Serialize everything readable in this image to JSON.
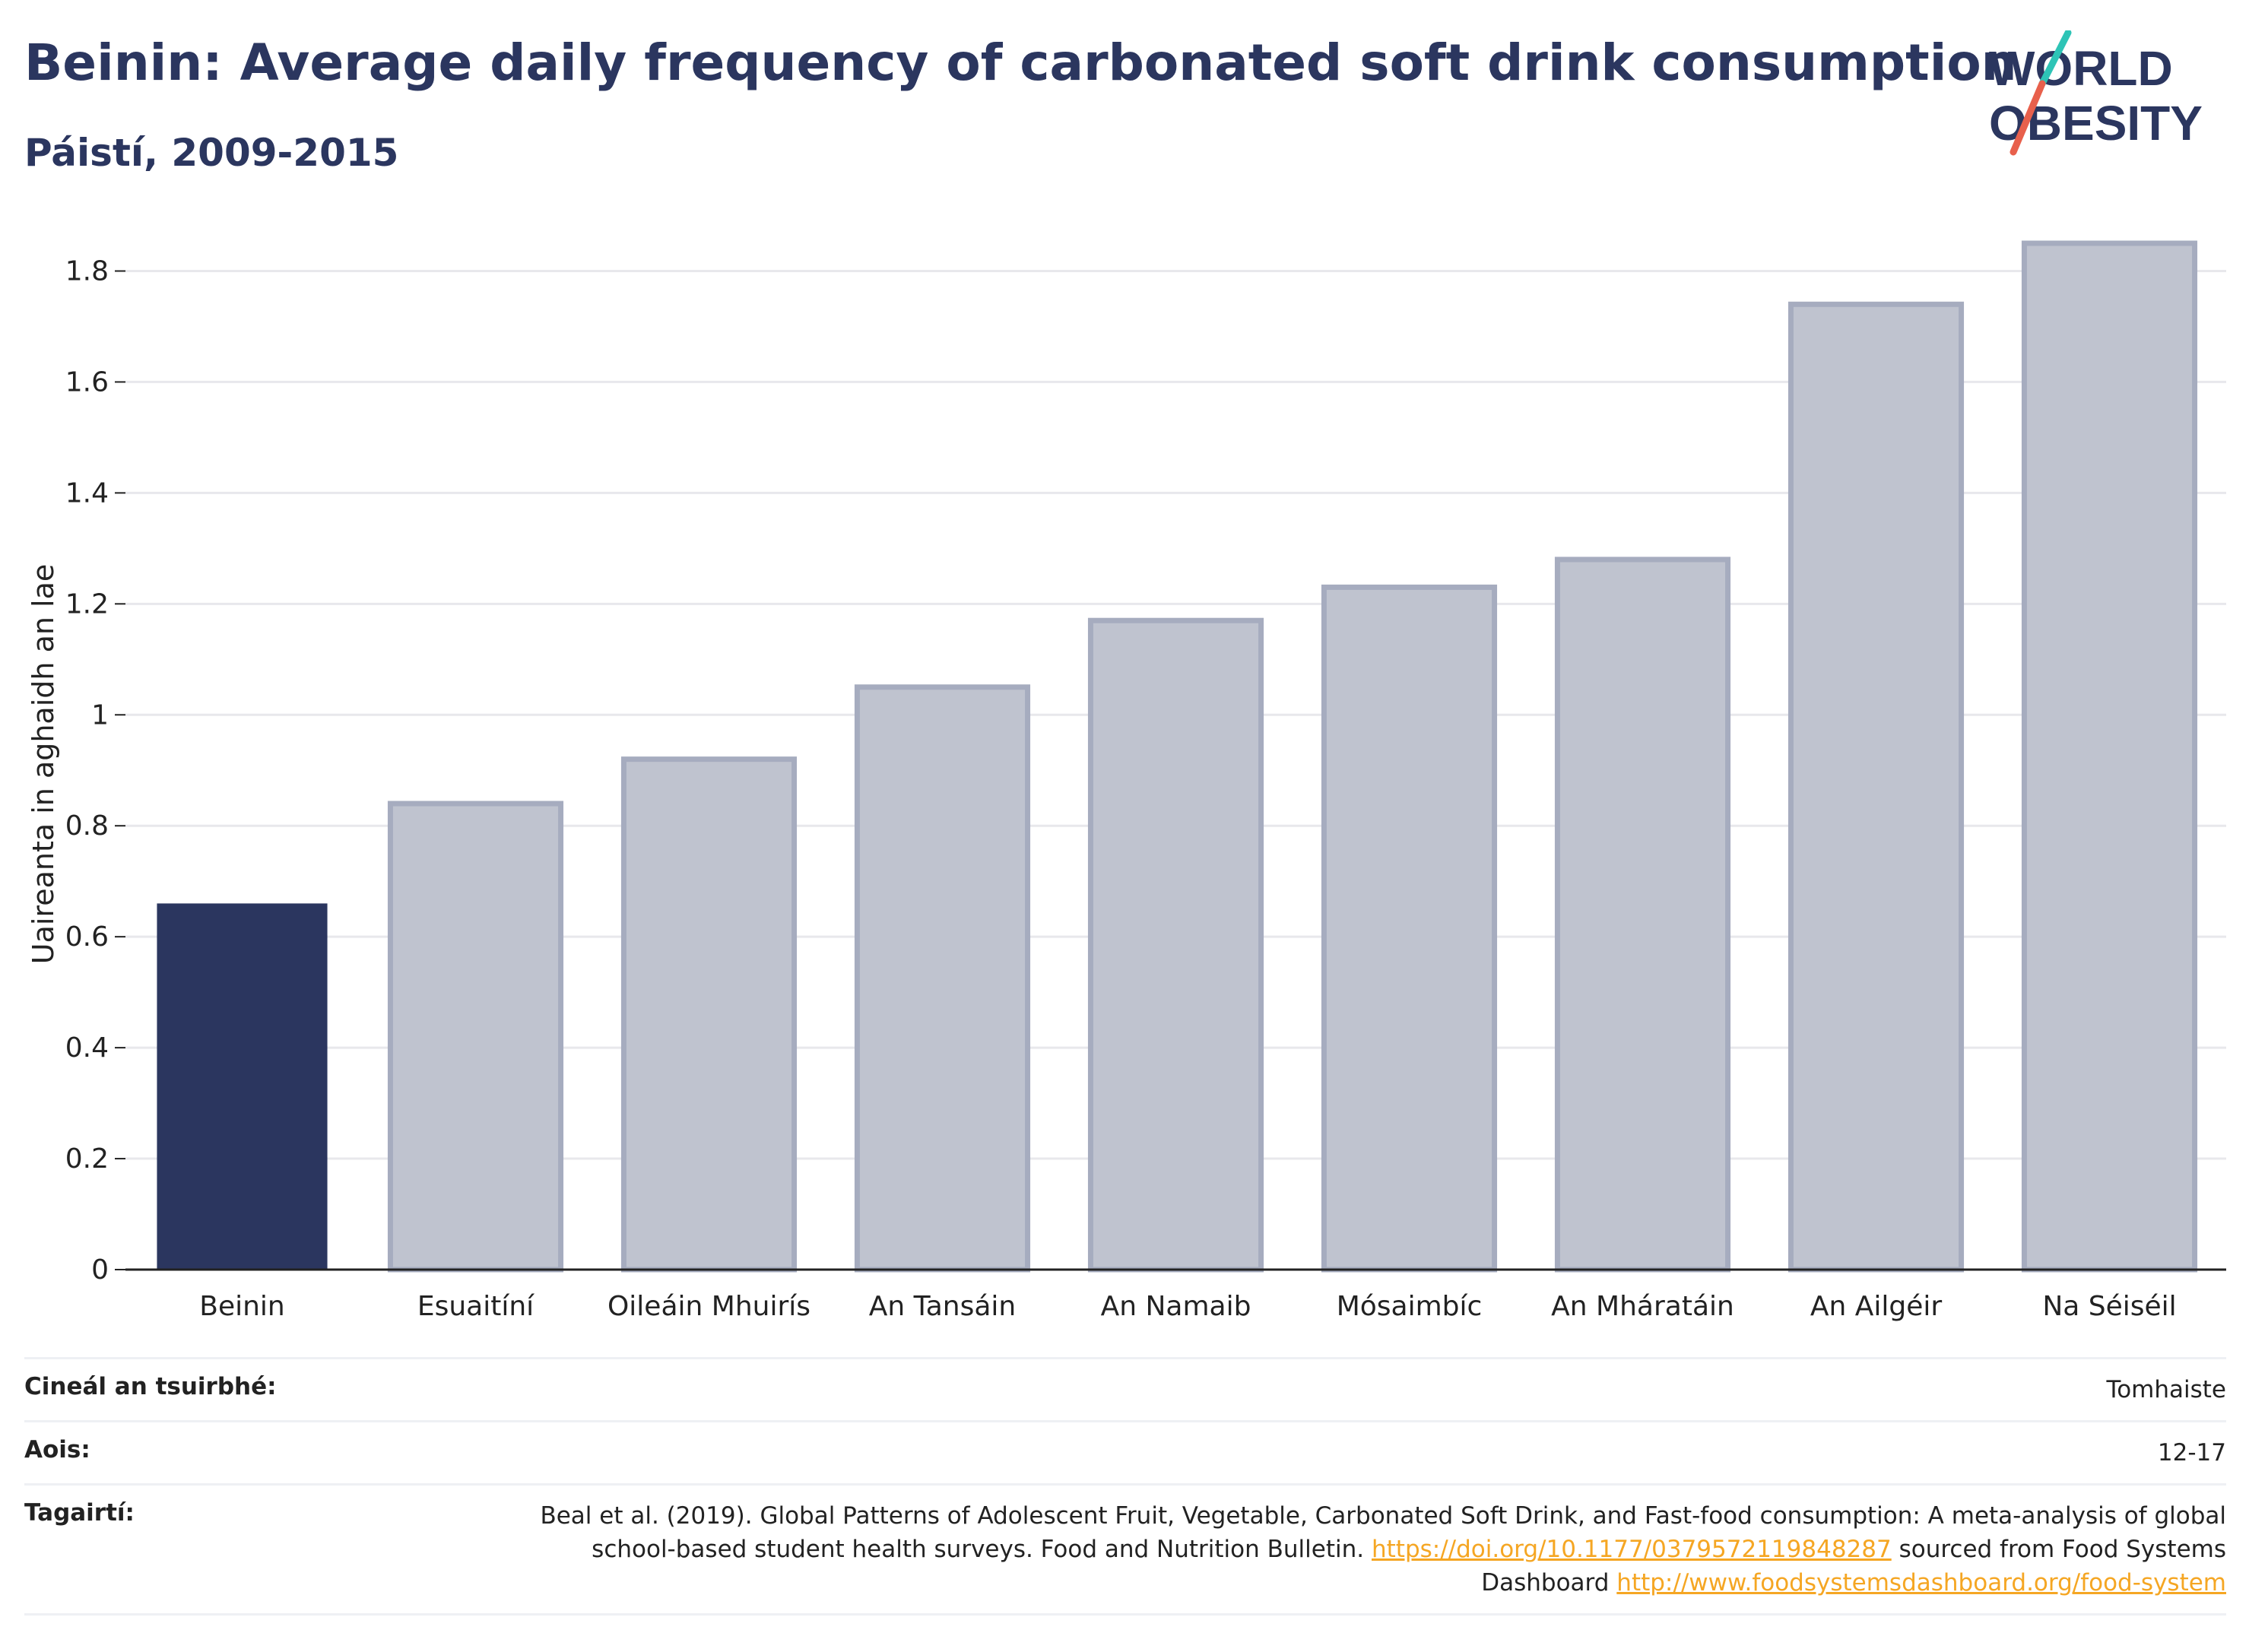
{
  "header": {
    "title": "Beinin: Average daily frequency of carbonated soft drink consumption",
    "subtitle": "Páistí, 2009-2015"
  },
  "logo": {
    "line1": "WORLD",
    "line2": "OBESITY",
    "accent_teal": "#2ec4b6",
    "accent_red": "#e8604c"
  },
  "colors": {
    "highlight": "#2b365f",
    "bar_fill": "#bfc3cf",
    "bar_stroke": "#a6acbf",
    "grid": "#e8e8ec",
    "axis": "#222222"
  },
  "chart_data": {
    "type": "bar",
    "ylabel": "Uaireanta in aghaidh an lae",
    "ylim": [
      0,
      1.85
    ],
    "yticks": [
      0,
      0.2,
      0.4,
      0.6,
      0.8,
      1,
      1.2,
      1.4,
      1.6,
      1.8
    ],
    "grid": true,
    "categories": [
      "Beinin",
      "Esuaitíní",
      "Oileáin Mhuirís",
      "An Tansáin",
      "An Namaib",
      "Mósaimbíc",
      "An Mháratáin",
      "An Ailgéir",
      "Na Séiséil"
    ],
    "values": [
      0.66,
      0.84,
      0.92,
      1.05,
      1.17,
      1.23,
      1.28,
      1.74,
      1.85
    ],
    "highlight_index": 0
  },
  "info": {
    "rows": [
      {
        "label": "Cineál an tsuirbhé:",
        "value": "Tomhaiste"
      },
      {
        "label": "Aois:",
        "value": "12-17"
      }
    ],
    "references": {
      "label": "Tagairtí:",
      "text1": "Beal et al. (2019). Global Patterns of Adolescent Fruit, Vegetable, Carbonated Soft Drink, and Fast-food consumption: A meta-analysis of global school-based student health surveys. Food and Nutrition Bulletin. ",
      "link1": "https://doi.org/10.1177/0379572119848287",
      "text2": " sourced from Food Systems Dashboard ",
      "link2": "http://www.foodsystemsdashboard.org/food-system"
    }
  }
}
